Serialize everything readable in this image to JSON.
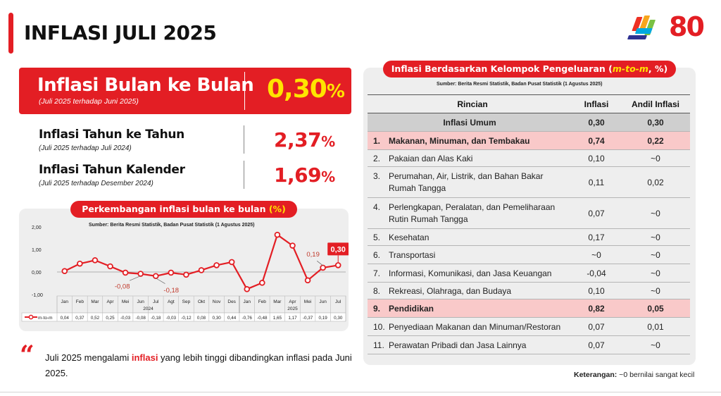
{
  "header": {
    "title": "INFLASI JULI 2025",
    "logo_text": "80",
    "logo_colors": [
      "#ee3124",
      "#f7a51c",
      "#7ac143",
      "#00a9e0",
      "#2e3192"
    ]
  },
  "summary": {
    "mtm": {
      "label": "Inflasi Bulan ke Bulan",
      "sub": "(Juli 2025 terhadap Juni 2025)",
      "value": "0,30",
      "unit": "%"
    },
    "yoy": {
      "label": "Inflasi Tahun ke Tahun",
      "sub": "(Juli 2025 terhadap Juli 2024)",
      "value": "2,37",
      "unit": "%"
    },
    "ytd": {
      "label": "Inflasi Tahun Kalender",
      "sub": "(Juli 2025 terhadap Desember 2024)",
      "value": "1,69",
      "unit": "%"
    }
  },
  "chart_data": {
    "type": "line",
    "title": "Perkembangan inflasi bulan ke bulan",
    "title_unit": "(%)",
    "source": "Sumber: Berita Resmi Statistik, Badan Pusat Statistik (1 Agustus 2025)",
    "categories": [
      "Jan",
      "Feb",
      "Mar",
      "Apr",
      "Mei",
      "Jun",
      "Jul",
      "Agt",
      "Sep",
      "Okt",
      "Nov",
      "Des",
      "Jan",
      "Feb",
      "Mar",
      "Apr",
      "Mei",
      "Jun",
      "Jul"
    ],
    "year_groups": [
      {
        "label": "2024",
        "count": 12
      },
      {
        "label": "2025",
        "count": 7
      }
    ],
    "series": [
      {
        "name": "m-to-m",
        "color": "#e31e24",
        "values": [
          0.04,
          0.37,
          0.52,
          0.25,
          -0.03,
          -0.08,
          -0.18,
          -0.03,
          -0.12,
          0.08,
          0.3,
          0.44,
          -0.76,
          -0.48,
          1.65,
          1.17,
          -0.37,
          0.19,
          0.3
        ],
        "labels": [
          "0,04",
          "0,37",
          "0,52",
          "0,25",
          "-0,03",
          "-0,08",
          "-0,18",
          "-0,03",
          "-0,12",
          "0,08",
          "0,30",
          "0,44",
          "-0,76",
          "-0,48",
          "1,65",
          "1,17",
          "-0,37",
          "0,19",
          "0,30"
        ]
      }
    ],
    "yticks": [
      {
        "value": 2,
        "label": "2,00"
      },
      {
        "value": 1,
        "label": "1,00"
      },
      {
        "value": 0,
        "label": "0,00"
      },
      {
        "value": -1,
        "label": "-1,00"
      }
    ],
    "ylim": [
      -1,
      2
    ],
    "annotations": [
      {
        "index": 5,
        "text": "-0,08",
        "emphasis": false
      },
      {
        "index": 6,
        "text": "-0,18",
        "emphasis": false
      },
      {
        "index": 17,
        "text": "0,19",
        "emphasis": false
      },
      {
        "index": 18,
        "text": "0,30",
        "emphasis": true
      }
    ],
    "legend_position": "bottom-left"
  },
  "quote": {
    "before": "Juli 2025 mengalami ",
    "highlight": "inflasi",
    "after": "  yang lebih tinggi dibandingkan inflasi pada Juni 2025."
  },
  "table": {
    "title_before": "Inflasi Berdasarkan Kelompok Pengeluaran (",
    "title_highlight": "m-to-m",
    "title_after": ", %)",
    "source": "Sumber: Berita Resmi Statistik, Badan Pusat Statistik (1 Agustus 2025)",
    "headers": {
      "name": "Rincian",
      "inflasi": "Inflasi",
      "andil": "Andil Inflasi"
    },
    "general": {
      "name": "Inflasi Umum",
      "inflasi": "0,30",
      "andil": "0,30"
    },
    "rows": [
      {
        "no": "1.",
        "name": "Makanan, Minuman, dan Tembakau",
        "inflasi": "0,74",
        "andil": "0,22",
        "highlight": true
      },
      {
        "no": "2.",
        "name": "Pakaian dan Alas Kaki",
        "inflasi": "0,10",
        "andil": "~0",
        "highlight": false
      },
      {
        "no": "3.",
        "name": "Perumahan, Air, Listrik, dan Bahan Bakar",
        "name2": "Rumah Tangga",
        "inflasi": "0,11",
        "andil": "0,02",
        "highlight": false
      },
      {
        "no": "4.",
        "name": "Perlengkapan, Peralatan, dan Pemeliharaan",
        "name2": "Rutin Rumah Tangga",
        "inflasi": "0,07",
        "andil": "~0",
        "highlight": false
      },
      {
        "no": "5.",
        "name": "Kesehatan",
        "inflasi": "0,17",
        "andil": "~0",
        "highlight": false
      },
      {
        "no": "6.",
        "name": "Transportasi",
        "inflasi": "~0",
        "andil": "~0",
        "highlight": false
      },
      {
        "no": "7.",
        "name": "Informasi, Komunikasi, dan Jasa Keuangan",
        "inflasi": "-0,04",
        "andil": "~0",
        "highlight": false
      },
      {
        "no": "8.",
        "name": "Rekreasi, Olahraga, dan Budaya",
        "inflasi": "0,10",
        "andil": "~0",
        "highlight": false
      },
      {
        "no": "9.",
        "name": "Pendidikan",
        "inflasi": "0,82",
        "andil": "0,05",
        "highlight": true
      },
      {
        "no": "10.",
        "name": "Penyediaan Makanan dan Minuman/Restoran",
        "inflasi": "0,07",
        "andil": "0,01",
        "highlight": false
      },
      {
        "no": "11.",
        "name": "Perawatan Pribadi dan Jasa Lainnya",
        "inflasi": "0,07",
        "andil": "~0",
        "highlight": false
      }
    ]
  },
  "note": {
    "label": "Keterangan:",
    "text": " ~0 bernilai sangat kecil"
  }
}
